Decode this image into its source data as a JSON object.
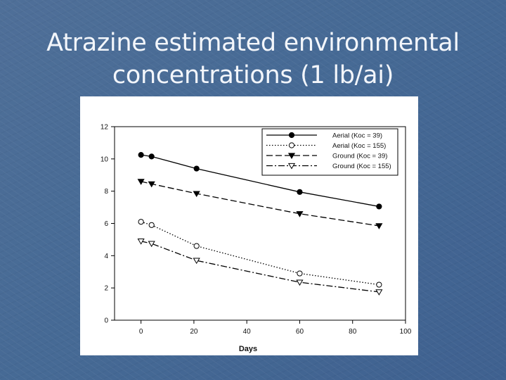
{
  "slide": {
    "title_line1": "Atrazine estimated environmental",
    "title_line2": "concentrations (1 lb/ai)"
  },
  "chart_data": {
    "type": "line",
    "title": "",
    "xlabel": "Days",
    "ylabel": "",
    "xlim": [
      -10,
      100
    ],
    "ylim": [
      0,
      12
    ],
    "xticks": [
      0,
      20,
      40,
      60,
      80,
      100
    ],
    "yticks": [
      0,
      2,
      4,
      6,
      8,
      10,
      12
    ],
    "grid": false,
    "legend_position": "top-right",
    "series": [
      {
        "name": "Aerial (Koc = 39)",
        "marker": "filled-circle",
        "line_style": "solid",
        "color": "#000000",
        "points": [
          [
            0,
            10.25
          ],
          [
            4,
            10.15
          ],
          [
            21,
            9.4
          ],
          [
            60,
            7.95
          ],
          [
            90,
            7.05
          ]
        ]
      },
      {
        "name": "Aerial (Koc = 155)",
        "marker": "open-circle",
        "line_style": "dotted",
        "color": "#000000",
        "points": [
          [
            0,
            6.1
          ],
          [
            4,
            5.9
          ],
          [
            21,
            4.6
          ],
          [
            60,
            2.9
          ],
          [
            90,
            2.2
          ]
        ]
      },
      {
        "name": "Ground (Koc = 39)",
        "marker": "filled-triangle-down",
        "line_style": "dashed",
        "color": "#000000",
        "points": [
          [
            0,
            8.6
          ],
          [
            4,
            8.45
          ],
          [
            21,
            7.85
          ],
          [
            60,
            6.6
          ],
          [
            90,
            5.85
          ]
        ]
      },
      {
        "name": "Ground (Koc = 155)",
        "marker": "open-triangle-down",
        "line_style": "dash-dot",
        "color": "#000000",
        "points": [
          [
            0,
            4.9
          ],
          [
            4,
            4.75
          ],
          [
            21,
            3.7
          ],
          [
            60,
            2.35
          ],
          [
            90,
            1.75
          ]
        ]
      }
    ]
  }
}
